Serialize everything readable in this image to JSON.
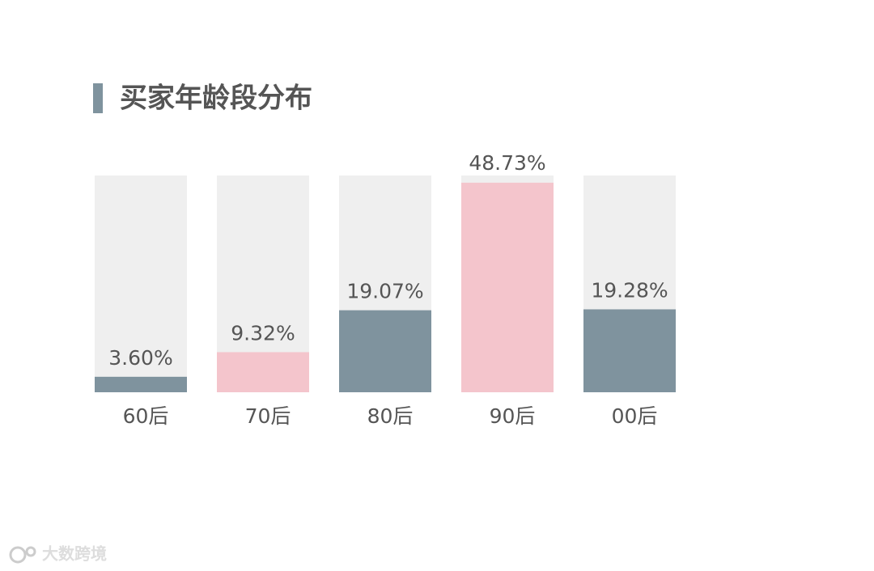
{
  "chart_data": {
    "type": "bar",
    "title": "买家年龄段分布",
    "categories": [
      "60后",
      "70后",
      "80后",
      "90后",
      "00后"
    ],
    "values": [
      3.6,
      9.32,
      19.07,
      48.73,
      19.28
    ],
    "value_labels": [
      "3.60%",
      "9.32%",
      "19.07%",
      "48.73%",
      "19.28%"
    ],
    "colors": [
      "#7f939e",
      "#f4c5cc",
      "#7f939e",
      "#f4c5cc",
      "#7f939e"
    ],
    "background_color": "#efefef",
    "ylim": [
      0,
      50.4
    ]
  },
  "watermark": "大数跨境"
}
